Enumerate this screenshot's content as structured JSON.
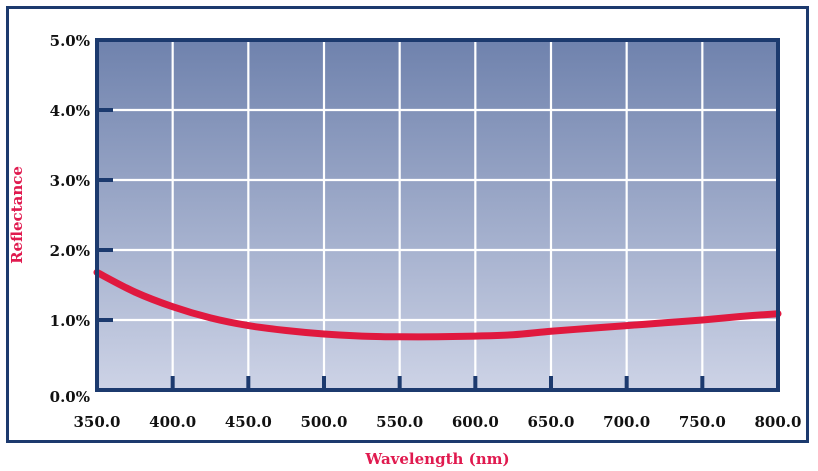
{
  "chart_data": {
    "type": "line",
    "xlabel": "Wavelength (nm)",
    "ylabel": "Reflectance",
    "xlim": [
      350,
      800
    ],
    "ylim": [
      0,
      5
    ],
    "x_ticks": [
      "350.0",
      "400.0",
      "450.0",
      "500.0",
      "550.0",
      "600.0",
      "650.0",
      "700.0",
      "750.0",
      "800.0"
    ],
    "y_ticks": [
      "0.0%",
      "1.0%",
      "2.0%",
      "3.0%",
      "4.0%",
      "5.0%"
    ],
    "grid": true,
    "series": [
      {
        "color": "#e0193f",
        "x": [
          350,
          375,
          400,
          425,
          450,
          475,
          500,
          525,
          550,
          575,
          600,
          625,
          650,
          675,
          700,
          725,
          750,
          775,
          800
        ],
        "y": [
          1.68,
          1.4,
          1.19,
          1.03,
          0.92,
          0.85,
          0.8,
          0.77,
          0.76,
          0.76,
          0.77,
          0.79,
          0.84,
          0.88,
          0.92,
          0.96,
          1.0,
          1.05,
          1.09
        ]
      }
    ]
  },
  "colors": {
    "frame": "#1c3a6e",
    "plot_top": "#6f82ad",
    "plot_bottom": "#cdd3e6",
    "grid": "#ffffff",
    "line": "#e0193f",
    "axis_label": "#e01a4f"
  }
}
